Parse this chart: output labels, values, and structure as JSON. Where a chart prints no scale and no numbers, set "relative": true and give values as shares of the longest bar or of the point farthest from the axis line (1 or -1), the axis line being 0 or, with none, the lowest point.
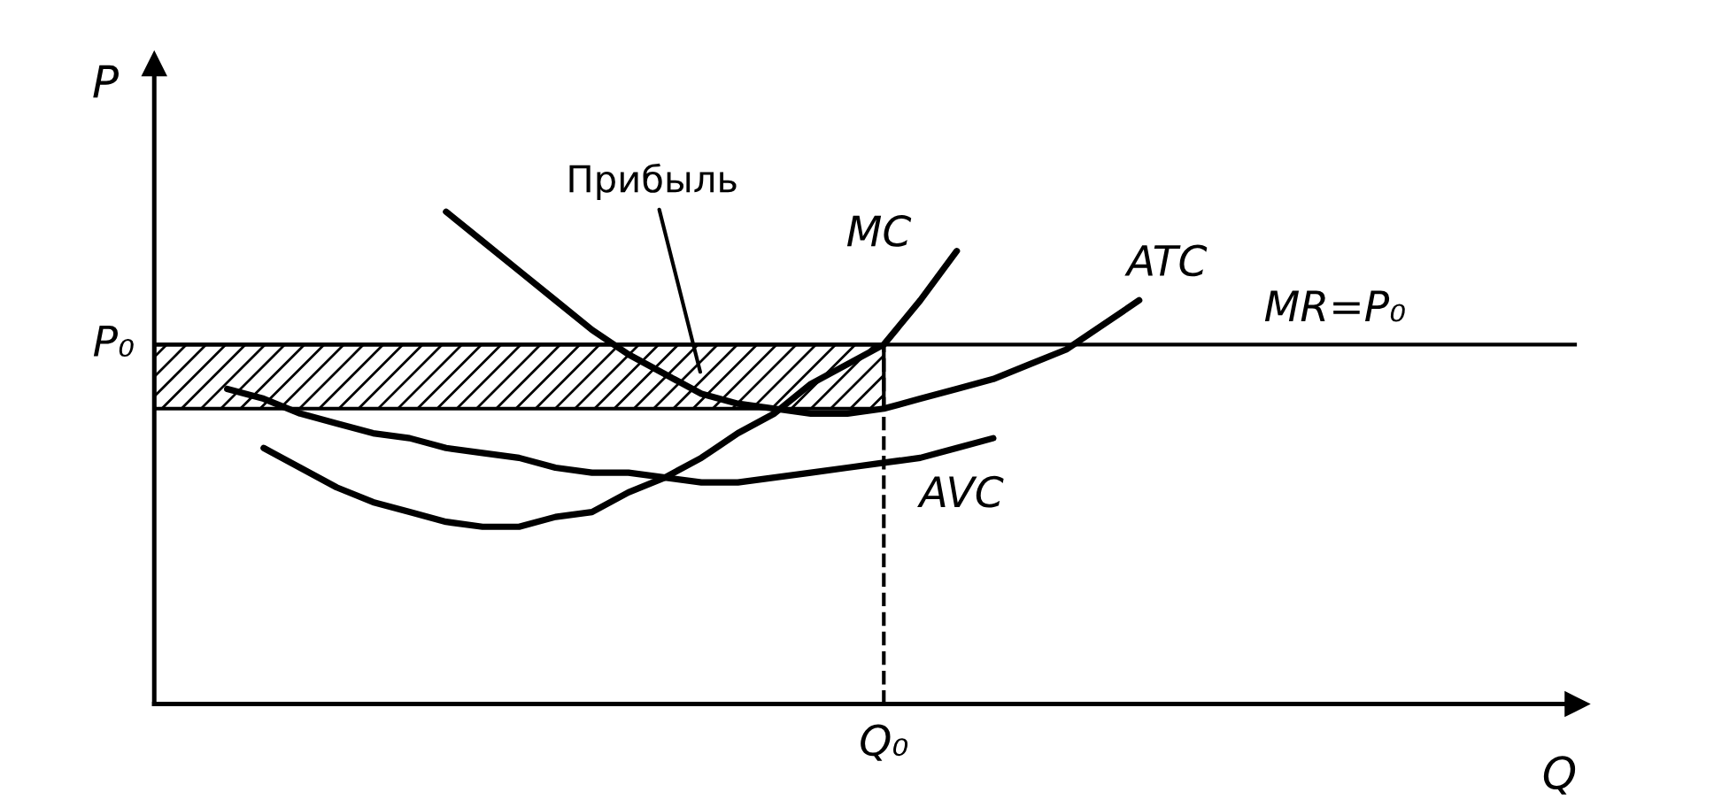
{
  "chart_data": {
    "type": "line",
    "relative": true,
    "xlabel": "Q",
    "ylabel": "P",
    "categories": [
      null,
      null,
      null,
      null,
      null,
      null,
      null,
      null,
      null,
      null,
      null,
      null,
      null,
      null,
      null,
      null,
      null,
      null,
      null,
      null,
      null,
      null,
      null,
      null,
      null,
      null,
      null,
      null,
      null,
      null,
      null,
      null,
      null,
      null,
      null,
      null,
      null,
      null,
      null,
      null
    ],
    "series": [
      {
        "name": "MC",
        "color": "#000000",
        "values": [
          null,
          null,
          null,
          0.52,
          0.48,
          0.44,
          0.41,
          0.39,
          0.37,
          0.36,
          0.36,
          0.38,
          0.39,
          0.43,
          0.46,
          0.5,
          0.55,
          0.59,
          0.65,
          0.69,
          0.73,
          0.82,
          0.92,
          null,
          null,
          null,
          null,
          null,
          null,
          null,
          null,
          null,
          null,
          null,
          null,
          null,
          null,
          null,
          null,
          null
        ]
      },
      {
        "name": "ATC",
        "color": "#000000",
        "values": [
          null,
          null,
          null,
          null,
          null,
          null,
          null,
          null,
          1.0,
          0.94,
          0.88,
          0.82,
          0.76,
          0.71,
          0.67,
          0.63,
          0.61,
          0.6,
          0.59,
          0.59,
          0.6,
          0.62,
          0.64,
          0.66,
          0.69,
          0.72,
          0.77,
          0.82,
          null,
          null,
          null,
          null,
          null,
          null,
          null,
          null,
          null,
          null,
          null,
          null
        ]
      },
      {
        "name": "AVC",
        "color": "#000000",
        "values": [
          null,
          null,
          0.64,
          0.62,
          0.59,
          0.57,
          0.55,
          0.54,
          0.52,
          0.51,
          0.5,
          0.48,
          0.47,
          0.47,
          0.46,
          0.45,
          0.45,
          0.46,
          0.47,
          0.48,
          0.49,
          0.5,
          0.52,
          0.54,
          null,
          null,
          null,
          null,
          null,
          null,
          null,
          null,
          null,
          null,
          null,
          null,
          null,
          null,
          null,
          null
        ]
      }
    ],
    "ref_lines": [
      {
        "axis": "y",
        "value": 0.73,
        "label": "MR=P₀",
        "color": "#000000",
        "line_style": "solid"
      }
    ],
    "bands": [
      {
        "axis": "y",
        "from": 0.6,
        "to": 0.73,
        "color": "#000000"
      }
    ],
    "annotations": [
      "Прибыль",
      "P₀",
      "Q₀"
    ],
    "line_style": "solid",
    "marker": "none",
    "legend": false
  }
}
